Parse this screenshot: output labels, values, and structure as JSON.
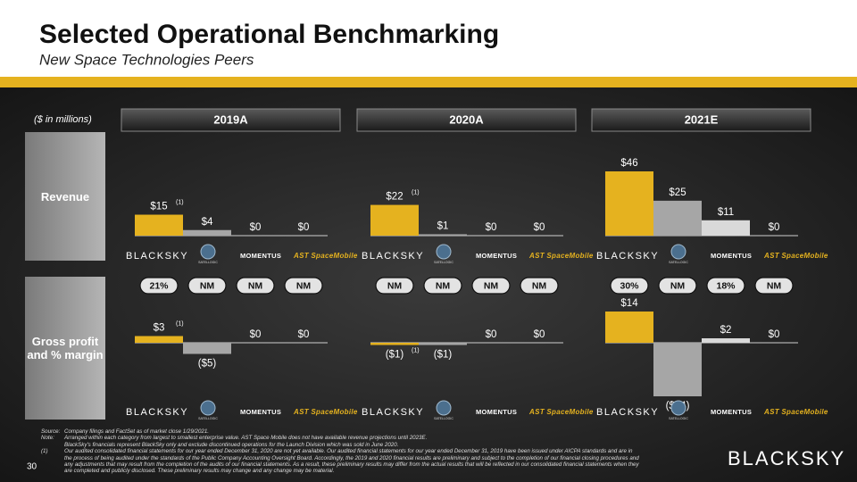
{
  "title": "Selected Operational Benchmarking",
  "subtitle": "New Space Technologies Peers",
  "units": "($ in millions)",
  "page_number": "30",
  "brand": "BLACKSKY",
  "footnotes": [
    {
      "marker": "Source:",
      "lines": [
        "Company filings and FactSet as of market close 1/29/2021."
      ]
    },
    {
      "marker": "Note:",
      "lines": [
        "Arranged within each category from largest to smallest enterprise value. AST Space Mobile does not have available revenue projections until 2023E.",
        "BlackSky's financials represent BlackSky only and exclude discontinued operations for the Launch Division which was sold in June 2020."
      ]
    },
    {
      "marker": "(1)",
      "lines": [
        "Our audited consolidated financial statements for our year ended December 31, 2020 are not yet available. Our audited financial statements for our year ended December 31, 2019 have been issued under AICPA standards and are in the process of being audited under the standards of the Public Company Accounting Oversight Board. Accordingly, the 2019 and 2020 financial results are preliminary and subject to the completion of our financial closing procedures and any adjustments that may result from the completion of the audits of our financial statements.  As a result, these preliminary results may differ from the actual results that will be reflected in our consolidated financial statements when they are completed and publicly disclosed. These preliminary results may change and any change may be material."
      ]
    }
  ],
  "chart_data": [
    {
      "type": "bar",
      "title": "Revenue",
      "categories": [
        "2019A",
        "2020A",
        "2021E"
      ],
      "series": [
        {
          "name": "BLACKSKY",
          "color": "#e5b21f",
          "values": [
            15,
            22,
            46
          ],
          "value_labels": [
            "$15",
            "$22",
            "$46"
          ],
          "notes": [
            "(1)",
            "(1)",
            null
          ]
        },
        {
          "name": "SATELLOGIC",
          "color": "#a6a6a6",
          "values": [
            4,
            1,
            25
          ],
          "value_labels": [
            "$4",
            "$1",
            "$25"
          ]
        },
        {
          "name": "MOMENTUS",
          "color": "#d9d9d9",
          "values": [
            0,
            0,
            11
          ],
          "value_labels": [
            "$0",
            "$0",
            "$11"
          ]
        },
        {
          "name": "AST SpaceMobile",
          "color": "#f2f2f2",
          "values": [
            0,
            0,
            0
          ],
          "value_labels": [
            "$0",
            "$0",
            "$0"
          ]
        }
      ]
    },
    {
      "type": "bar",
      "title": "Gross profit and % margin",
      "series": [
        {
          "name": "BLACKSKY",
          "color": "#e5b21f",
          "values": [
            3,
            -1,
            14
          ],
          "value_labels": [
            "$3",
            "($1)",
            "$14"
          ],
          "notes": [
            "(1)",
            "(1)",
            null
          ],
          "margin_labels": [
            "21%",
            "NM",
            "30%"
          ]
        },
        {
          "name": "SATELLOGIC",
          "color": "#a6a6a6",
          "values": [
            -5,
            -1,
            -24
          ],
          "value_labels": [
            "($5)",
            "($1)",
            "($24)"
          ],
          "margin_labels": [
            "NM",
            "NM",
            "NM"
          ]
        },
        {
          "name": "MOMENTUS",
          "color": "#d9d9d9",
          "values": [
            0,
            0,
            2
          ],
          "value_labels": [
            "$0",
            "$0",
            "$2"
          ],
          "margin_labels": [
            "NM",
            "NM",
            "18%"
          ]
        },
        {
          "name": "AST SpaceMobile",
          "color": "#f2f2f2",
          "values": [
            0,
            0,
            0
          ],
          "value_labels": [
            "$0",
            "$0",
            "$0"
          ],
          "margin_labels": [
            "NM",
            "NM",
            "NM"
          ]
        }
      ]
    }
  ]
}
